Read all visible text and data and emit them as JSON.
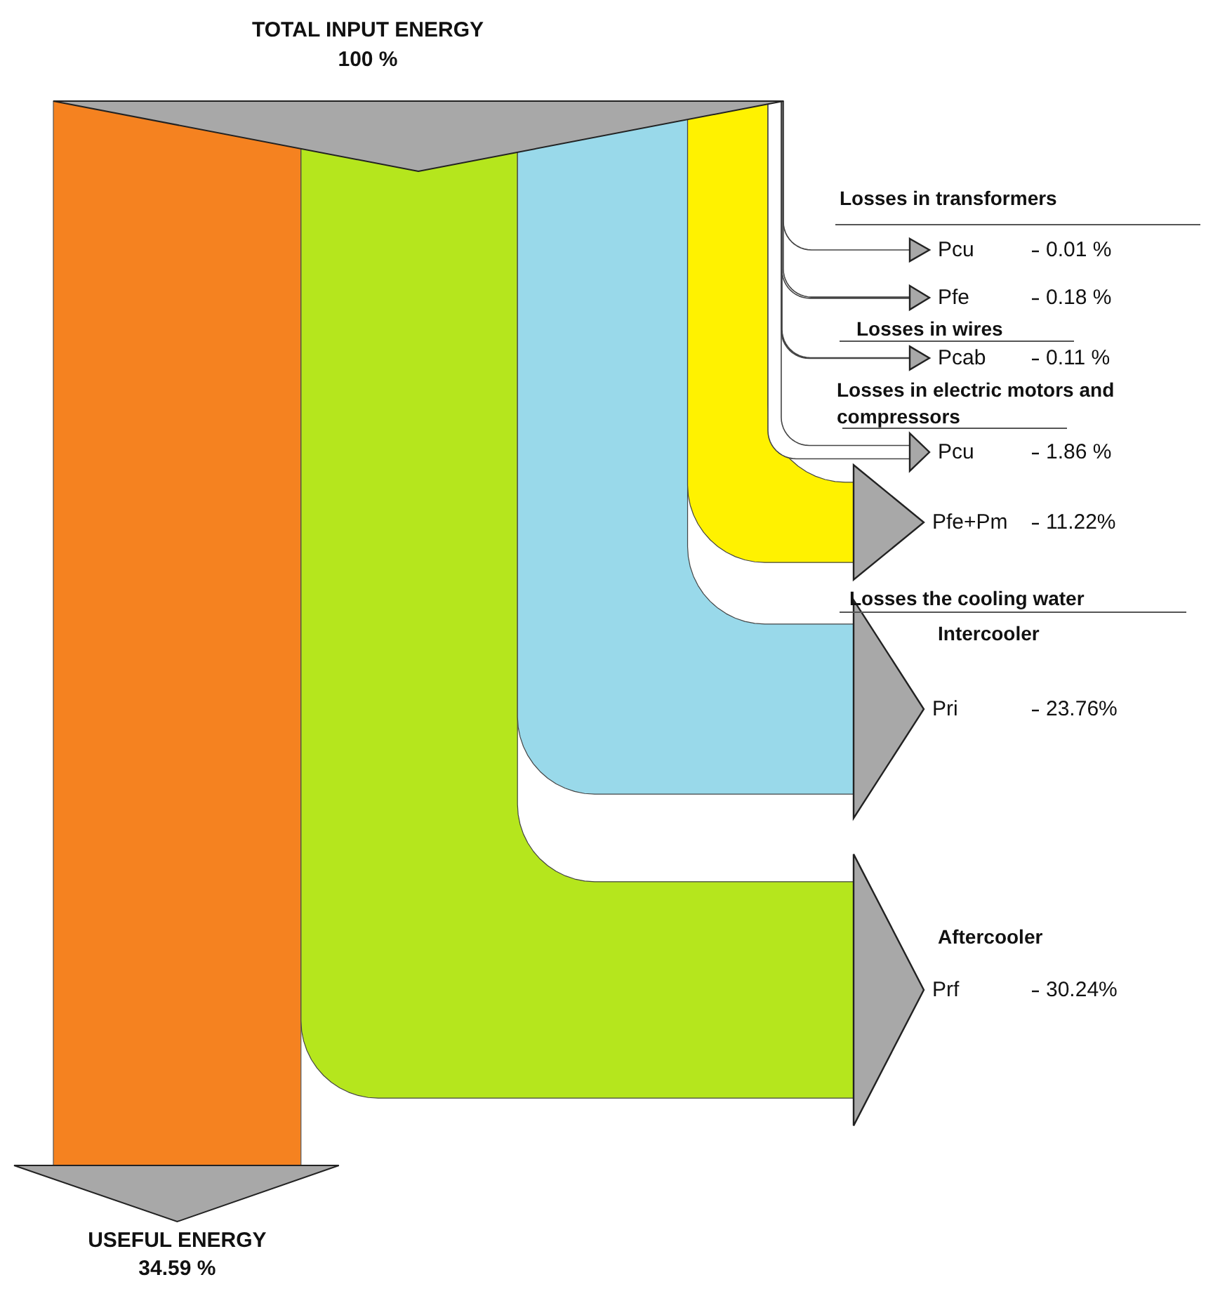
{
  "chart_data": {
    "type": "other",
    "title": "TOTAL INPUT ENERGY",
    "subtitle": "100 %",
    "categories": [
      "USEFUL ENERGY",
      "Prf",
      "Pri",
      "Pfe+Pm",
      "Pcu",
      "Pcab",
      "Pfe",
      "Pcu"
    ],
    "values": [
      34.59,
      30.24,
      23.76,
      11.22,
      1.86,
      0.11,
      0.18,
      0.01
    ],
    "value_labels": [
      "34.59 %",
      "30.24%",
      "23.76%",
      "11.22%",
      "1.86 %",
      "0.11 %",
      "0.18 %",
      "0.01 %"
    ],
    "colors": [
      "#f58220",
      "#b5e61d",
      "#99d9ea",
      "#fff200",
      "#ffffff",
      "#ffffff",
      "#ffffff",
      "#ffffff"
    ],
    "annotations": [
      "Losses in transformers",
      "Losses in wires",
      "Losses in electric motors and compressors",
      "Losses the cooling water",
      "Intercooler",
      "Aftercooler"
    ]
  }
}
